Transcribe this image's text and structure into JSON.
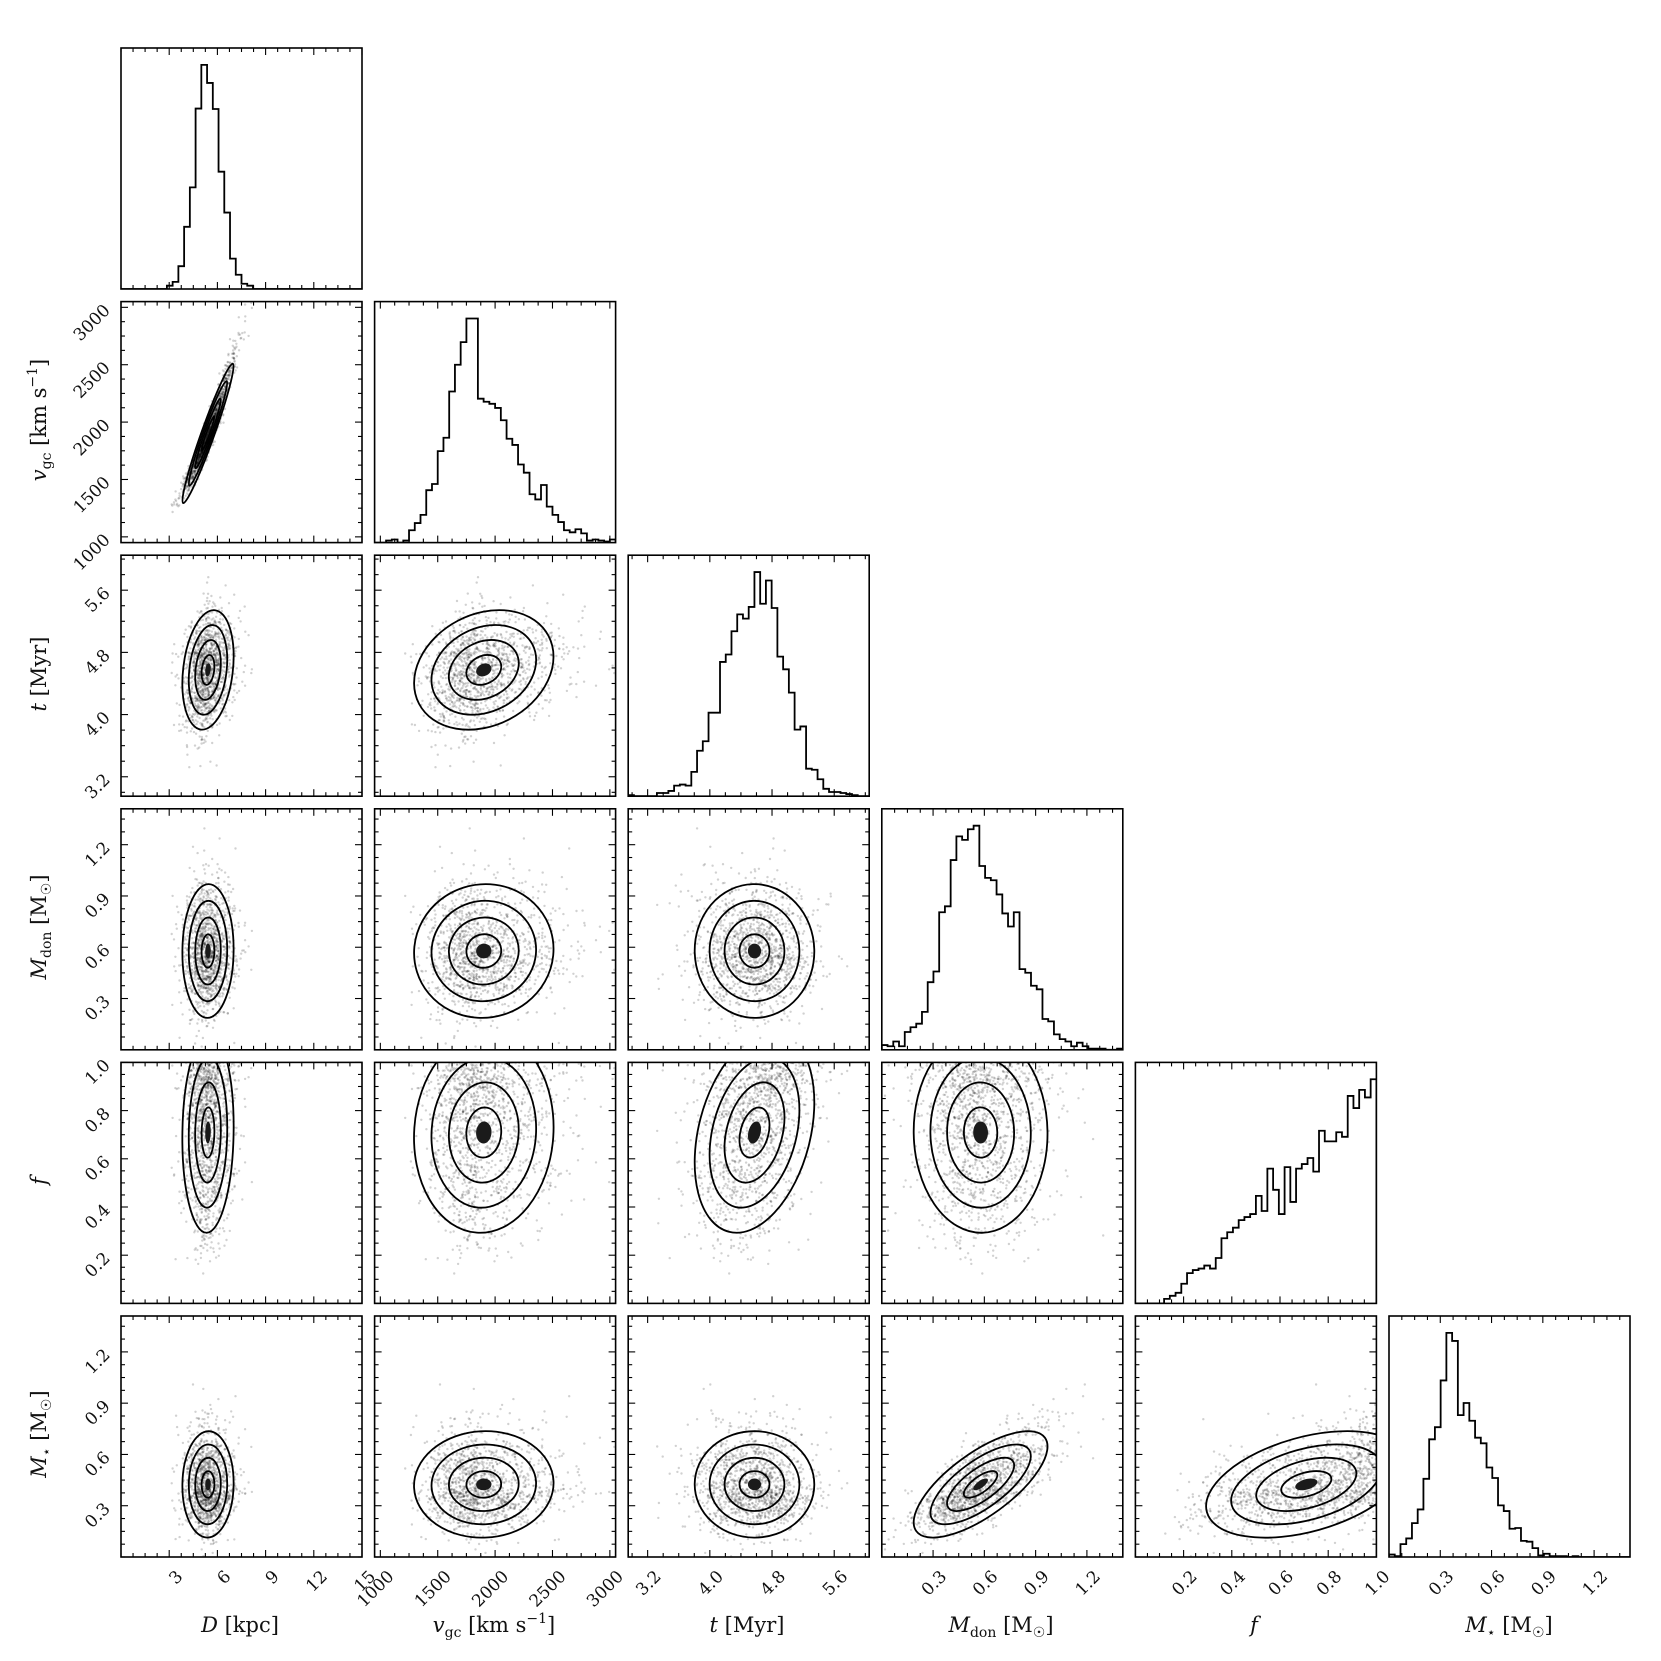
{
  "chart_data": {
    "type": "corner",
    "description_params": [
      "D",
      "v_gc",
      "t",
      "M_don",
      "f",
      "M_star"
    ],
    "parameters": [
      {
        "key": "D",
        "label": "D [kpc]",
        "ylabel": "",
        "range": [
          0,
          15
        ],
        "ticks": [
          3,
          6,
          9,
          12,
          15
        ],
        "dist": {
          "kind": "gauss",
          "mu": 5.4,
          "sigma": 0.75,
          "tail": 1.1
        }
      },
      {
        "key": "v_gc",
        "label": "v_gc [km s^-1]",
        "ylabel": "v_gc [km s^-1]",
        "range": [
          950,
          3050
        ],
        "ticks": [
          1000,
          1500,
          2000,
          2500,
          3000
        ],
        "dist": {
          "kind": "gauss",
          "mu": 1850,
          "sigma": 230,
          "tail": 1.6
        }
      },
      {
        "key": "t",
        "label": "t [Myr]",
        "ylabel": "t [Myr]",
        "range": [
          2.95,
          6.05
        ],
        "ticks": [
          3.2,
          4.0,
          4.8,
          5.6
        ],
        "dist": {
          "kind": "gauss",
          "mu": 4.6,
          "sigma": 0.4,
          "tail": 0.9
        }
      },
      {
        "key": "M_don",
        "label": "M_don [M_sun]",
        "ylabel": "M_don [M_sun]",
        "range": [
          0.0,
          1.41
        ],
        "ticks": [
          0.3,
          0.6,
          0.9,
          1.2
        ],
        "dist": {
          "kind": "gauss",
          "mu": 0.55,
          "sigma": 0.17,
          "tail": 1.3
        }
      },
      {
        "key": "f",
        "label": "f",
        "ylabel": "f",
        "range": [
          0.0,
          1.0
        ],
        "ticks": [
          0.2,
          0.4,
          0.6,
          0.8,
          1.0
        ],
        "dist": {
          "kind": "ramp",
          "start": 0.12,
          "end": 1.0
        }
      },
      {
        "key": "M_star",
        "label": "M_star [M_sun]",
        "ylabel": "M_star [M_sun]",
        "range": [
          0.0,
          1.41
        ],
        "ticks": [
          0.3,
          0.6,
          0.9,
          1.2
        ],
        "dist": {
          "kind": "gauss",
          "mu": 0.4,
          "sigma": 0.13,
          "tail": 1.4
        }
      }
    ],
    "tick_text": {
      "D": [
        "3",
        "6",
        "9",
        "12",
        "15"
      ],
      "v_gc": [
        "1000",
        "1500",
        "2000",
        "2500",
        "3000"
      ],
      "t": [
        "3.2",
        "4.0",
        "4.8",
        "5.6"
      ],
      "M_don": [
        "0.3",
        "0.6",
        "0.9",
        "1.2"
      ],
      "f": [
        "0.2",
        "0.4",
        "0.6",
        "0.8",
        "1.0"
      ],
      "M_star": [
        "0.3",
        "0.6",
        "0.9",
        "1.2"
      ]
    },
    "correlations": [
      {
        "pair": [
          "D",
          "v_gc"
        ],
        "rho": 0.97
      },
      {
        "pair": [
          "M_don",
          "M_star"
        ],
        "rho": 0.72
      },
      {
        "pair": [
          "f",
          "M_star"
        ],
        "rho": 0.65
      },
      {
        "pair": [
          "D",
          "t"
        ],
        "rho": 0.15
      },
      {
        "pair": [
          "v_gc",
          "t"
        ],
        "rho": 0.1
      },
      {
        "pair": [
          "t",
          "f"
        ],
        "rho": 0.3
      }
    ],
    "contour_levels_sigma": [
      0.5,
      1.0,
      1.5,
      2.0
    ],
    "grid": false
  }
}
